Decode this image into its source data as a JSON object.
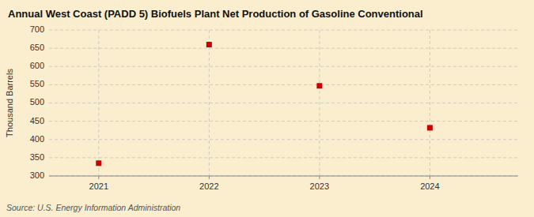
{
  "chart_data": {
    "type": "scatter",
    "title": "Annual West Coast (PADD 5) Biofuels Plant Net Production of Gasoline Conventional",
    "ylabel": "Thousand Barrels",
    "source": "Source: U.S. Energy Information Administration",
    "x": [
      2021,
      2022,
      2023,
      2024
    ],
    "values": [
      335,
      660,
      547,
      432
    ],
    "color": "#cc0000",
    "marker": "square",
    "xlim": [
      2020.55,
      2024.8
    ],
    "xticks": [
      2021,
      2022,
      2023,
      2024
    ],
    "ylim": [
      300,
      700
    ],
    "yticks": [
      300,
      350,
      400,
      450,
      500,
      550,
      600,
      650,
      700
    ],
    "grid": true
  }
}
